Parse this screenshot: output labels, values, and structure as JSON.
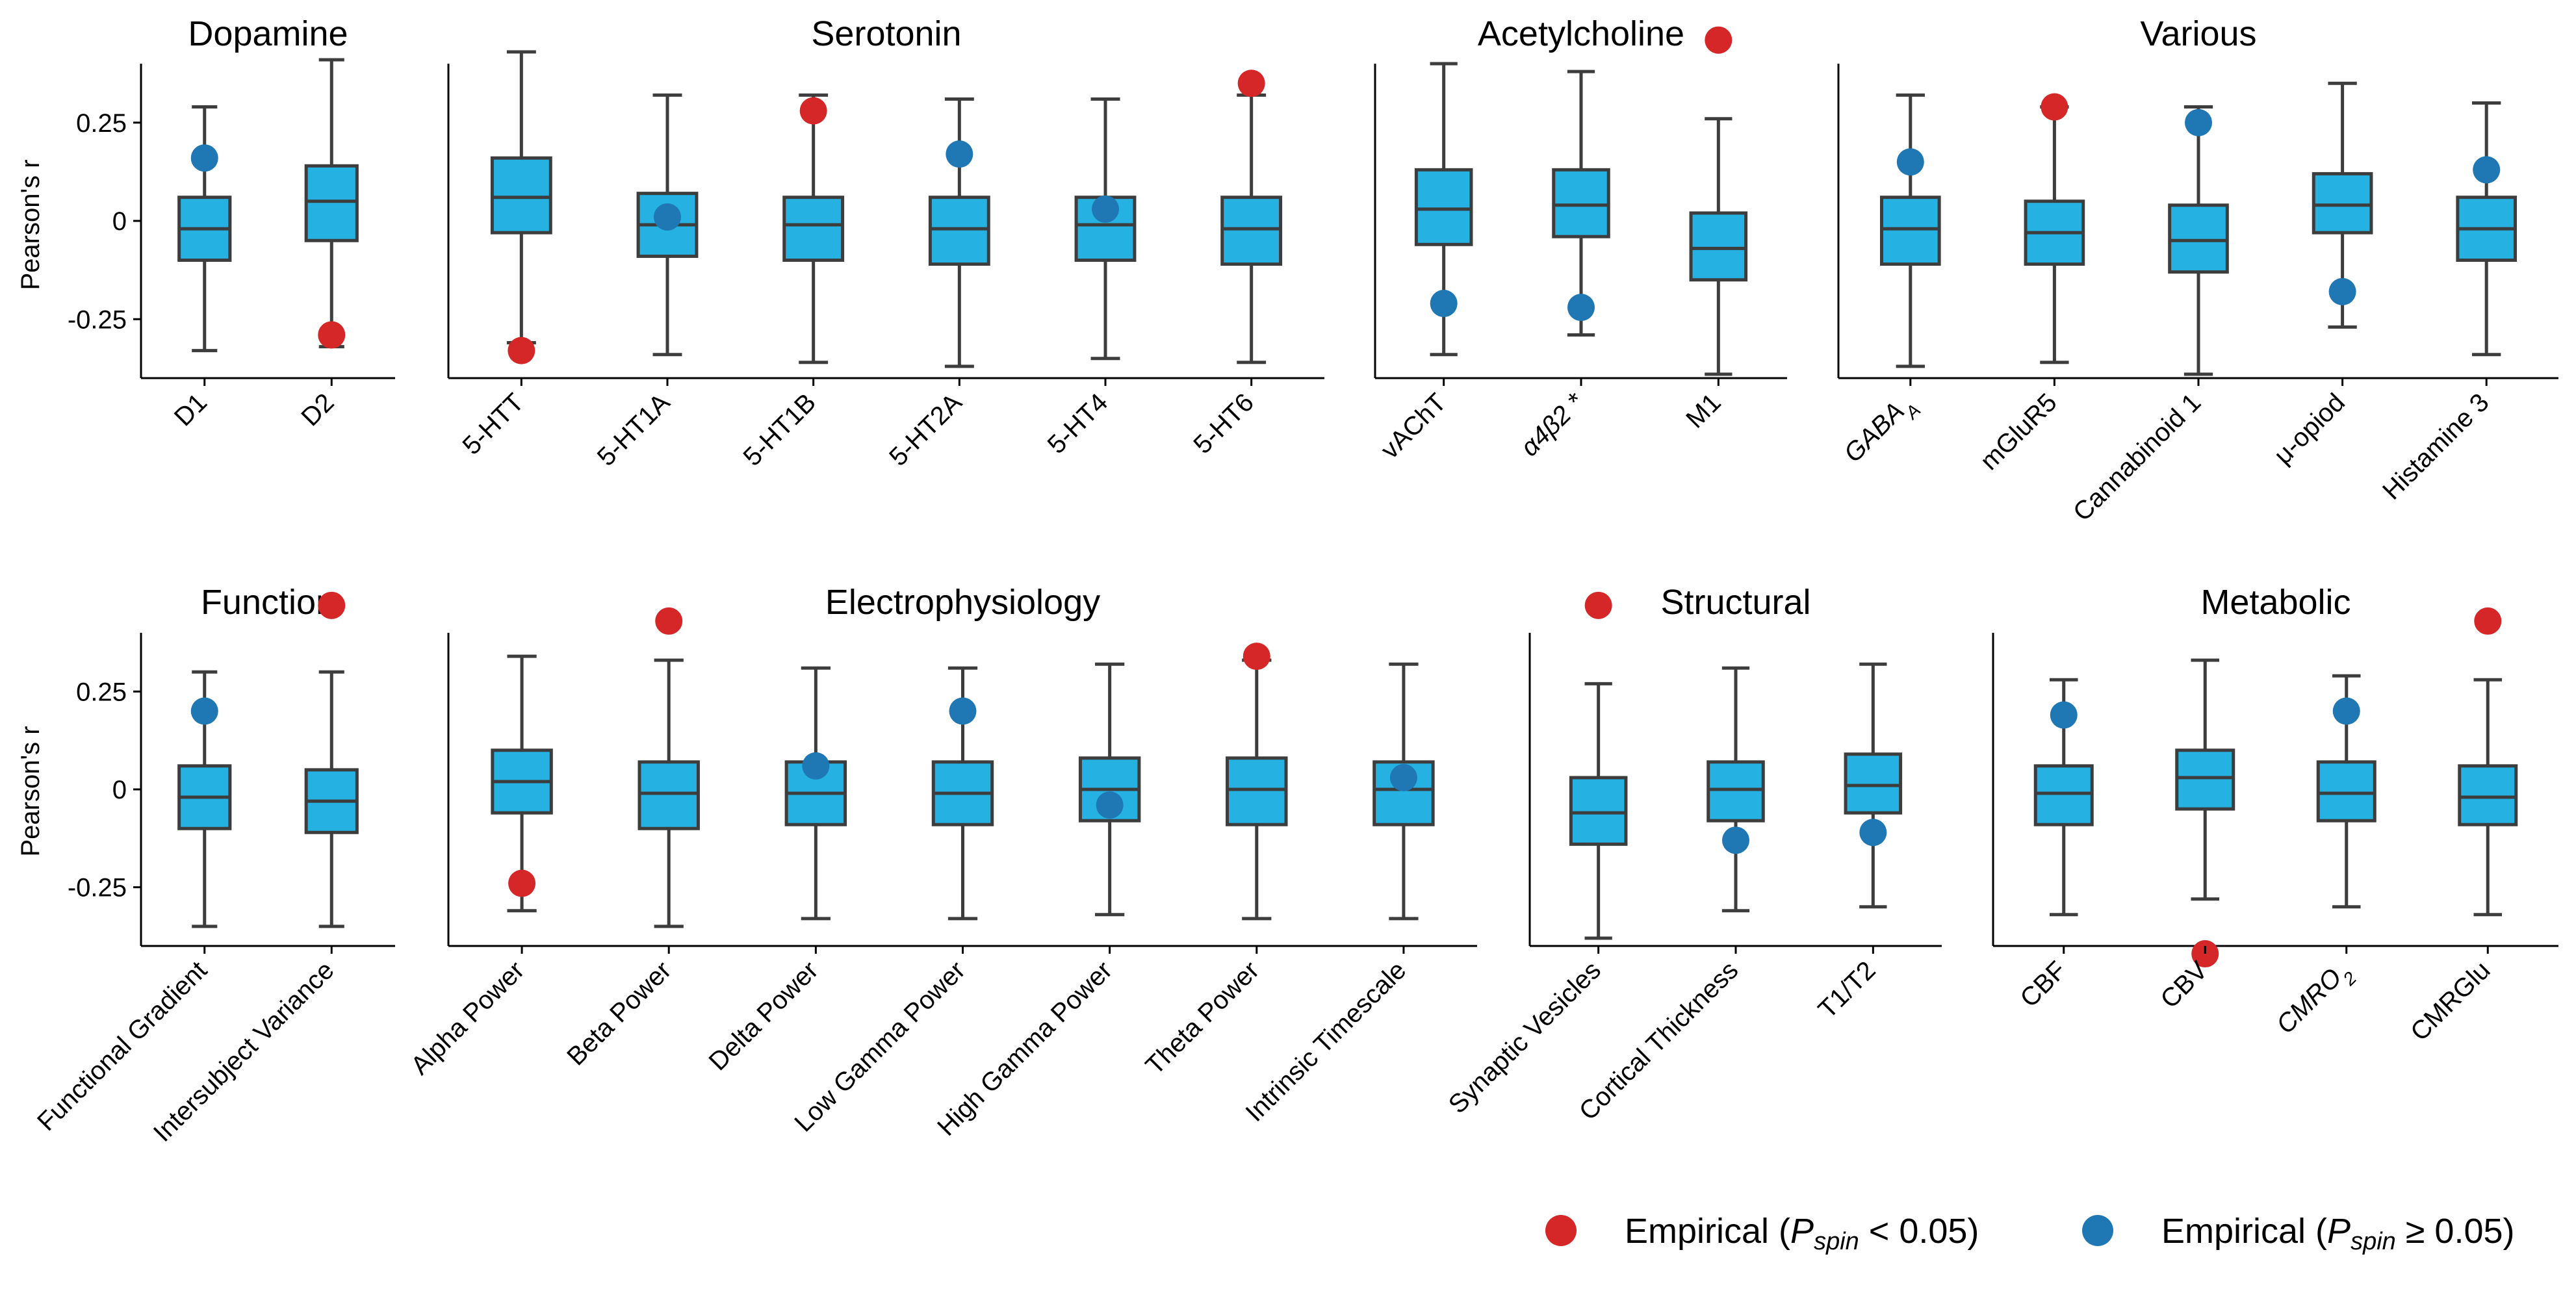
{
  "colors": {
    "box_fill": "#25b2e3",
    "box_edge": "#3d3d3d",
    "significant": "#d62728",
    "not_significant": "#1f77b4",
    "axis": "#000000"
  },
  "y_axis_label": "Pearson's r",
  "legend": {
    "placement": "bottom-right",
    "items": [
      {
        "key": "significant",
        "prefix": "Empirical (",
        "sym": "P",
        "sub": "spin",
        "suffix": " < 0.05)"
      },
      {
        "key": "not_significant",
        "prefix": "Empirical (",
        "sym": "P",
        "sub": "spin",
        "suffix": " ≥ 0.05)"
      }
    ]
  },
  "chart_data": [
    {
      "type": "box",
      "title": "Dopamine",
      "row": 0,
      "ylim": [
        -0.4,
        0.4
      ],
      "show_y_axis": true,
      "yticks": [
        {
          "v": 0.25,
          "label": "0.25"
        },
        {
          "v": 0,
          "label": "0"
        },
        {
          "v": -0.25,
          "label": "-0.25"
        }
      ],
      "categories": [
        {
          "name": "D1",
          "math": false,
          "whisker_low": -0.33,
          "q1": -0.1,
          "median": -0.02,
          "q3": 0.06,
          "whisker_high": 0.29,
          "empirical": 0.16,
          "significant": false
        },
        {
          "name": "D2",
          "math": false,
          "whisker_low": -0.32,
          "q1": -0.05,
          "median": 0.05,
          "q3": 0.14,
          "whisker_high": 0.41,
          "empirical": -0.29,
          "significant": true
        }
      ]
    },
    {
      "type": "box",
      "title": "Serotonin",
      "row": 0,
      "ylim": [
        -0.4,
        0.4
      ],
      "show_y_axis": false,
      "categories": [
        {
          "name": "5-HTT",
          "math": false,
          "whisker_low": -0.31,
          "q1": -0.03,
          "median": 0.06,
          "q3": 0.16,
          "whisker_high": 0.43,
          "empirical": -0.33,
          "significant": true
        },
        {
          "name": "5-HT1A",
          "math": false,
          "whisker_low": -0.34,
          "q1": -0.09,
          "median": -0.01,
          "q3": 0.07,
          "whisker_high": 0.32,
          "empirical": 0.01,
          "significant": false
        },
        {
          "name": "5-HT1B",
          "math": false,
          "whisker_low": -0.36,
          "q1": -0.1,
          "median": -0.01,
          "q3": 0.06,
          "whisker_high": 0.32,
          "empirical": 0.28,
          "significant": true
        },
        {
          "name": "5-HT2A",
          "math": false,
          "whisker_low": -0.37,
          "q1": -0.11,
          "median": -0.02,
          "q3": 0.06,
          "whisker_high": 0.31,
          "empirical": 0.17,
          "significant": false
        },
        {
          "name": "5-HT4",
          "math": false,
          "whisker_low": -0.35,
          "q1": -0.1,
          "median": -0.01,
          "q3": 0.06,
          "whisker_high": 0.31,
          "empirical": 0.03,
          "significant": false
        },
        {
          "name": "5-HT6",
          "math": false,
          "whisker_low": -0.36,
          "q1": -0.11,
          "median": -0.02,
          "q3": 0.06,
          "whisker_high": 0.32,
          "empirical": 0.35,
          "significant": true
        }
      ]
    },
    {
      "type": "box",
      "title": "Acetylcholine",
      "row": 0,
      "ylim": [
        -0.4,
        0.4
      ],
      "show_y_axis": false,
      "categories": [
        {
          "name": "vAChT",
          "math": false,
          "whisker_low": -0.34,
          "q1": -0.06,
          "median": 0.03,
          "q3": 0.13,
          "whisker_high": 0.4,
          "empirical": -0.21,
          "significant": false
        },
        {
          "name": "α4β2 *",
          "math": true,
          "whisker_low": -0.29,
          "q1": -0.04,
          "median": 0.04,
          "q3": 0.13,
          "whisker_high": 0.38,
          "empirical": -0.22,
          "significant": false
        },
        {
          "name": "M1",
          "math": false,
          "whisker_low": -0.39,
          "q1": -0.15,
          "median": -0.07,
          "q3": 0.02,
          "whisker_high": 0.26,
          "empirical": 0.46,
          "significant": true
        }
      ]
    },
    {
      "type": "box",
      "title": "Various",
      "row": 0,
      "ylim": [
        -0.4,
        0.4
      ],
      "show_y_axis": false,
      "categories": [
        {
          "name": "GABAA",
          "label_main": "GABA",
          "label_sub": "A",
          "math": true,
          "whisker_low": -0.37,
          "q1": -0.11,
          "median": -0.02,
          "q3": 0.06,
          "whisker_high": 0.32,
          "empirical": 0.15,
          "significant": false
        },
        {
          "name": "mGluR5",
          "math": false,
          "whisker_low": -0.36,
          "q1": -0.11,
          "median": -0.03,
          "q3": 0.05,
          "whisker_high": 0.29,
          "empirical": 0.29,
          "significant": true
        },
        {
          "name": "Cannabinoid 1",
          "math": false,
          "whisker_low": -0.39,
          "q1": -0.13,
          "median": -0.05,
          "q3": 0.04,
          "whisker_high": 0.29,
          "empirical": 0.25,
          "significant": false
        },
        {
          "name": "μ-opiod",
          "math": false,
          "whisker_low": -0.27,
          "q1": -0.03,
          "median": 0.04,
          "q3": 0.12,
          "whisker_high": 0.35,
          "empirical": -0.18,
          "significant": false
        },
        {
          "name": "Histamine 3",
          "math": false,
          "whisker_low": -0.34,
          "q1": -0.1,
          "median": -0.02,
          "q3": 0.06,
          "whisker_high": 0.3,
          "empirical": 0.13,
          "significant": false
        }
      ]
    },
    {
      "type": "box",
      "title": "Function",
      "row": 1,
      "ylim": [
        -0.4,
        0.4
      ],
      "show_y_axis": true,
      "yticks": [
        {
          "v": 0.25,
          "label": "0.25"
        },
        {
          "v": 0,
          "label": "0"
        },
        {
          "v": -0.25,
          "label": "-0.25"
        }
      ],
      "categories": [
        {
          "name": "Functional Gradient",
          "math": false,
          "whisker_low": -0.35,
          "q1": -0.1,
          "median": -0.02,
          "q3": 0.06,
          "whisker_high": 0.3,
          "empirical": 0.2,
          "significant": false
        },
        {
          "name": "Intersubject Variance",
          "math": false,
          "whisker_low": -0.35,
          "q1": -0.11,
          "median": -0.03,
          "q3": 0.05,
          "whisker_high": 0.3,
          "empirical": 0.47,
          "significant": true
        }
      ]
    },
    {
      "type": "box",
      "title": "Electrophysiology",
      "row": 1,
      "ylim": [
        -0.4,
        0.4
      ],
      "show_y_axis": false,
      "categories": [
        {
          "name": "Alpha Power",
          "math": false,
          "whisker_low": -0.31,
          "q1": -0.06,
          "median": 0.02,
          "q3": 0.1,
          "whisker_high": 0.34,
          "empirical": -0.24,
          "significant": true
        },
        {
          "name": "Beta Power",
          "math": false,
          "whisker_low": -0.35,
          "q1": -0.1,
          "median": -0.01,
          "q3": 0.07,
          "whisker_high": 0.33,
          "empirical": 0.43,
          "significant": true
        },
        {
          "name": "Delta Power",
          "math": false,
          "whisker_low": -0.33,
          "q1": -0.09,
          "median": -0.01,
          "q3": 0.07,
          "whisker_high": 0.31,
          "empirical": 0.06,
          "significant": false
        },
        {
          "name": "Low Gamma Power",
          "math": false,
          "whisker_low": -0.33,
          "q1": -0.09,
          "median": -0.01,
          "q3": 0.07,
          "whisker_high": 0.31,
          "empirical": 0.2,
          "significant": false
        },
        {
          "name": "High Gamma Power",
          "math": false,
          "whisker_low": -0.32,
          "q1": -0.08,
          "median": 0.0,
          "q3": 0.08,
          "whisker_high": 0.32,
          "empirical": -0.04,
          "significant": false
        },
        {
          "name": "Theta Power",
          "math": false,
          "whisker_low": -0.33,
          "q1": -0.09,
          "median": 0.0,
          "q3": 0.08,
          "whisker_high": 0.33,
          "empirical": 0.34,
          "significant": true
        },
        {
          "name": "Intrinsic Timescale",
          "math": false,
          "whisker_low": -0.33,
          "q1": -0.09,
          "median": 0.0,
          "q3": 0.07,
          "whisker_high": 0.32,
          "empirical": 0.03,
          "significant": false
        }
      ]
    },
    {
      "type": "box",
      "title": "Structural",
      "row": 1,
      "ylim": [
        -0.4,
        0.4
      ],
      "show_y_axis": false,
      "categories": [
        {
          "name": "Synaptic Vesicles",
          "math": false,
          "whisker_low": -0.38,
          "q1": -0.14,
          "median": -0.06,
          "q3": 0.03,
          "whisker_high": 0.27,
          "empirical": 0.47,
          "significant": true
        },
        {
          "name": "Cortical Thickness",
          "math": false,
          "whisker_low": -0.31,
          "q1": -0.08,
          "median": 0.0,
          "q3": 0.07,
          "whisker_high": 0.31,
          "empirical": -0.13,
          "significant": false
        },
        {
          "name": "T1/T2",
          "math": false,
          "whisker_low": -0.3,
          "q1": -0.06,
          "median": 0.01,
          "q3": 0.09,
          "whisker_high": 0.32,
          "empirical": -0.11,
          "significant": false
        }
      ]
    },
    {
      "type": "box",
      "title": "Metabolic",
      "row": 1,
      "ylim": [
        -0.4,
        0.4
      ],
      "show_y_axis": false,
      "categories": [
        {
          "name": "CBF",
          "math": false,
          "whisker_low": -0.32,
          "q1": -0.09,
          "median": -0.01,
          "q3": 0.06,
          "whisker_high": 0.28,
          "empirical": 0.19,
          "significant": false
        },
        {
          "name": "CBV",
          "math": false,
          "whisker_low": -0.28,
          "q1": -0.05,
          "median": 0.03,
          "q3": 0.1,
          "whisker_high": 0.33,
          "empirical": -0.42,
          "significant": true
        },
        {
          "name": "CMRO2",
          "label_main": "CMRO",
          "label_sub": "2",
          "math": true,
          "whisker_low": -0.3,
          "q1": -0.08,
          "median": -0.01,
          "q3": 0.07,
          "whisker_high": 0.29,
          "empirical": 0.2,
          "significant": false
        },
        {
          "name": "CMRGlu",
          "math": false,
          "whisker_low": -0.32,
          "q1": -0.09,
          "median": -0.02,
          "q3": 0.06,
          "whisker_high": 0.28,
          "empirical": 0.43,
          "significant": true
        }
      ]
    }
  ]
}
